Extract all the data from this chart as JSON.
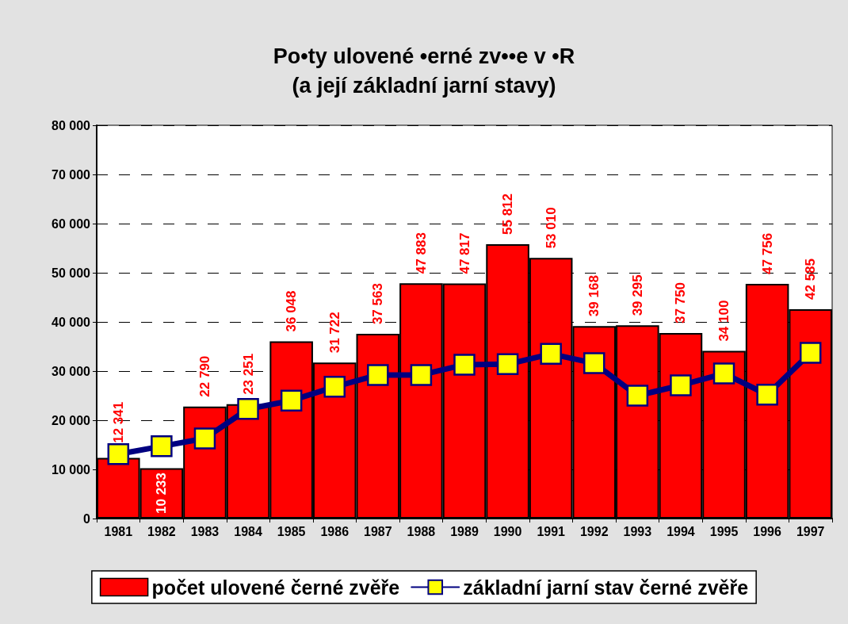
{
  "chart_data": {
    "type": "bar",
    "title": "Po•ty ulovené •erné zv••e v •R",
    "subtitle": "(a její základní jarní stavy)",
    "categories": [
      "1981",
      "1982",
      "1983",
      "1984",
      "1985",
      "1986",
      "1987",
      "1988",
      "1989",
      "1990",
      "1991",
      "1992",
      "1993",
      "1994",
      "1995",
      "1996",
      "1997"
    ],
    "series": [
      {
        "name": "počet ulovené černé zvěře",
        "type": "bar",
        "color": "#ff0000",
        "values": [
          12341,
          10233,
          22790,
          23251,
          36048,
          31722,
          37563,
          47883,
          47817,
          55812,
          53010,
          39168,
          39295,
          37750,
          34100,
          47756,
          42585
        ],
        "value_labels": [
          "12 341",
          "10 233",
          "22 790",
          "23 251",
          "36 048",
          "31 722",
          "37 563",
          "47 883",
          "47 817",
          "55 812",
          "53 010",
          "39 168",
          "39 295",
          "37 750",
          "34 100",
          "47 756",
          "42 585"
        ]
      },
      {
        "name": "základní jarní stav černé zvěře",
        "type": "line",
        "color": "#000080",
        "values": [
          13100,
          14700,
          16300,
          22300,
          24000,
          26800,
          29200,
          29200,
          31300,
          31400,
          33500,
          31600,
          25000,
          27100,
          29500,
          25200,
          33700
        ]
      }
    ],
    "ylim": [
      0,
      80000
    ],
    "yticks": [
      0,
      {
        "value": 10000,
        "label": "10 000"
      },
      {
        "value": 20000,
        "label": "20 000"
      },
      {
        "value": 30000,
        "label": "30 000"
      },
      {
        "value": 40000,
        "label": "40 000"
      },
      {
        "value": 50000,
        "label": "50 000"
      },
      {
        "value": 60000,
        "label": "60 000"
      },
      {
        "value": 70000,
        "label": "70 000"
      },
      {
        "value": 80000,
        "label": "80 000"
      }
    ],
    "grid": "y",
    "legend": "bottom",
    "marker": "square",
    "line_style": "solid"
  }
}
